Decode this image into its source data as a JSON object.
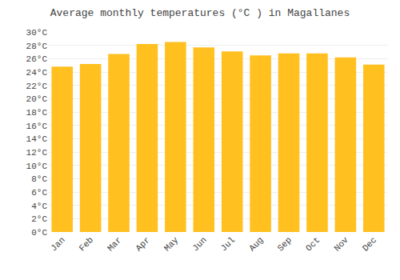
{
  "chart_data": {
    "type": "bar",
    "title": "Average monthly temperatures (°C ) in Magallanes",
    "categories": [
      "Jan",
      "Feb",
      "Mar",
      "Apr",
      "May",
      "Jun",
      "Jul",
      "Aug",
      "Sep",
      "Oct",
      "Nov",
      "Dec"
    ],
    "values": [
      24.8,
      25.2,
      26.7,
      28.2,
      28.5,
      27.7,
      27.1,
      26.5,
      26.8,
      26.8,
      26.2,
      25.1
    ],
    "color": "#FFC020",
    "ylim": [
      0,
      30
    ],
    "yticks": [
      {
        "value": 0,
        "label": "0°C"
      },
      {
        "value": 2,
        "label": "2°C"
      },
      {
        "value": 4,
        "label": "4°C"
      },
      {
        "value": 6,
        "label": "6°C"
      },
      {
        "value": 8,
        "label": "8°C"
      },
      {
        "value": 10,
        "label": "10°C"
      },
      {
        "value": 12,
        "label": "12°C"
      },
      {
        "value": 14,
        "label": "14°C"
      },
      {
        "value": 16,
        "label": "16°C"
      },
      {
        "value": 18,
        "label": "18°C"
      },
      {
        "value": 20,
        "label": "20°C"
      },
      {
        "value": 22,
        "label": "22°C"
      },
      {
        "value": 24,
        "label": "24°C"
      },
      {
        "value": 26,
        "label": "26°C"
      },
      {
        "value": 28,
        "label": "28°C"
      },
      {
        "value": 30,
        "label": "30°C"
      }
    ],
    "grid": true
  }
}
